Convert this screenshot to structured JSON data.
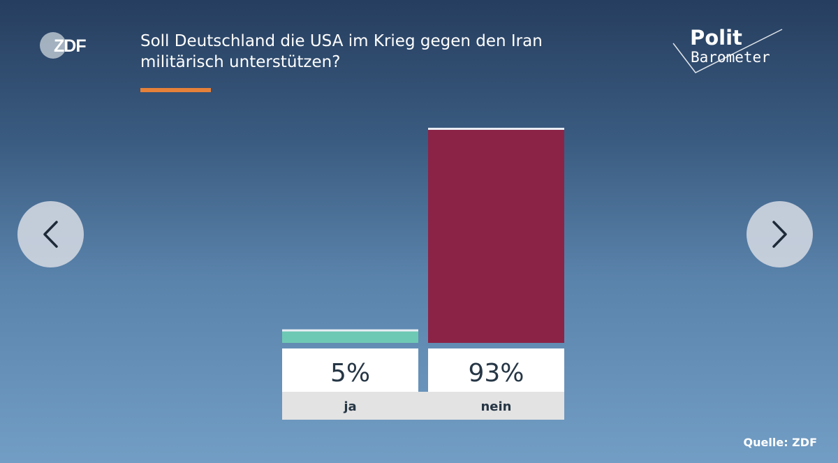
{
  "logo": {
    "zdf": "ZDF",
    "polit": "Polit",
    "barometer": "Barometer"
  },
  "title_line1": "Soll Deutschland die USA im Krieg gegen den Iran",
  "title_line2": "militärisch unterstützen?",
  "source": "Quelle: ZDF",
  "colors": {
    "accent": "#e6813a",
    "ja": "#6ec9b4",
    "nein": "#8b2347"
  },
  "nav": {
    "prev_icon": "chevron-left-icon",
    "next_icon": "chevron-right-icon"
  },
  "chart_data": {
    "type": "bar",
    "title": "Soll Deutschland die USA im Krieg gegen den Iran militärisch unterstützen?",
    "categories": [
      "ja",
      "nein"
    ],
    "values": [
      5,
      93
    ],
    "value_labels": [
      "5%",
      "93%"
    ],
    "unit": "%",
    "ylim": [
      0,
      100
    ],
    "colors": [
      "#6ec9b4",
      "#8b2347"
    ],
    "grid": false,
    "legend": "none"
  }
}
